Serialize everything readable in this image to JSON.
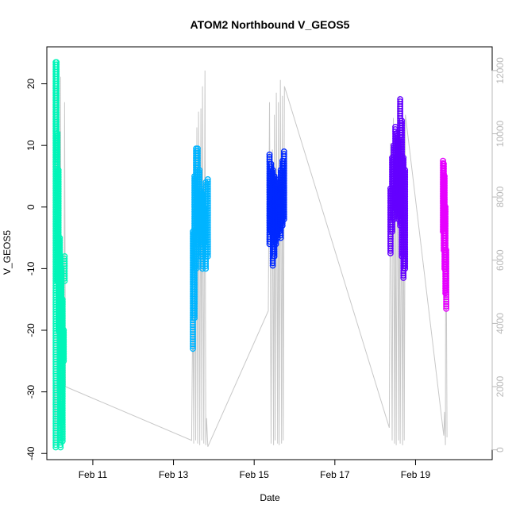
{
  "chart_data": {
    "type": "scatter",
    "title": "ATOM2 Northbound V_GEOS5",
    "xlabel": "Date",
    "ylabel": "V_GEOS5",
    "xlim": [
      9.86,
      20.9
    ],
    "ylim": [
      -41,
      26
    ],
    "y2lim": [
      -310,
      12750
    ],
    "x_ticks": [
      {
        "value": 11,
        "label": "Feb 11"
      },
      {
        "value": 13,
        "label": "Feb 13"
      },
      {
        "value": 15,
        "label": "Feb 15"
      },
      {
        "value": 17,
        "label": "Feb 17"
      },
      {
        "value": 19,
        "label": "Feb 19"
      }
    ],
    "y_ticks": [
      {
        "value": -40,
        "label": "-40"
      },
      {
        "value": -30,
        "label": "-30"
      },
      {
        "value": -20,
        "label": "-20"
      },
      {
        "value": -10,
        "label": "-10"
      },
      {
        "value": 0,
        "label": "0"
      },
      {
        "value": 10,
        "label": "10"
      },
      {
        "value": 20,
        "label": "20"
      }
    ],
    "y2_ticks": [
      {
        "value": 0,
        "label": "0"
      },
      {
        "value": 2000,
        "label": "2000"
      },
      {
        "value": 4000,
        "label": "4000"
      },
      {
        "value": 6000,
        "label": "6000"
      },
      {
        "value": 8000,
        "label": "8000"
      },
      {
        "value": 10000,
        "label": "10000"
      },
      {
        "value": 12000,
        "label": "12000"
      }
    ],
    "series": [
      {
        "color": "#00f5b8",
        "x": [
          10.08,
          10.1,
          10.12,
          10.15,
          10.18,
          10.2,
          10.22,
          10.25,
          10.28,
          10.3
        ],
        "min": [
          -39,
          8,
          -12,
          -20,
          -30,
          -39,
          -35,
          -38,
          -25,
          -12
        ],
        "max": [
          23.5,
          23.5,
          12,
          6,
          -5,
          -8,
          -10,
          -15,
          -20,
          -8
        ]
      },
      {
        "color": "#00b4ff",
        "x": [
          13.48,
          13.52,
          13.56,
          13.6,
          13.64,
          13.68,
          13.72,
          13.76,
          13.8,
          13.85
        ],
        "min": [
          -23,
          -18,
          -10,
          -6,
          -4,
          -8,
          -10,
          -6,
          -10,
          -8
        ],
        "max": [
          -4,
          5,
          9.5,
          9.5,
          6,
          3,
          2,
          0,
          4,
          4.5
        ]
      },
      {
        "color": "#0028ff",
        "x": [
          15.38,
          15.42,
          15.46,
          15.5,
          15.54,
          15.58,
          15.62,
          15.66,
          15.7,
          15.74
        ],
        "min": [
          -6,
          -4,
          -9.5,
          -8,
          -6,
          -5,
          -4,
          -5,
          -3,
          -2
        ],
        "max": [
          8.5,
          7,
          6,
          5,
          4.5,
          4,
          3,
          6,
          7.5,
          9
        ]
      },
      {
        "color": "#6400ff",
        "x": [
          18.38,
          18.42,
          18.46,
          18.5,
          18.54,
          18.58,
          18.62,
          18.66,
          18.7,
          18.74
        ],
        "min": [
          -7.5,
          -4,
          -2,
          0,
          -1,
          -2,
          -3,
          -8,
          -11.5,
          -10
        ],
        "max": [
          3,
          8,
          10,
          13,
          12,
          11,
          17.5,
          14,
          8,
          6
        ]
      },
      {
        "color": "#e600ff",
        "x": [
          19.68,
          19.7,
          19.72,
          19.74,
          19.76
        ],
        "min": [
          -4,
          -7,
          -10,
          -14,
          -16.5
        ],
        "max": [
          7.5,
          7,
          5,
          0,
          -7
        ]
      }
    ],
    "altitude_path": {
      "color": "#c8c8c8",
      "x": [
        10.05,
        10.08,
        10.1,
        10.12,
        10.15,
        10.18,
        10.2,
        10.22,
        10.25,
        10.28,
        10.3,
        10.32,
        13.45,
        13.48,
        13.5,
        13.52,
        13.55,
        13.58,
        13.6,
        13.62,
        13.65,
        13.68,
        13.7,
        13.72,
        13.75,
        13.78,
        13.8,
        13.82,
        13.85,
        15.35,
        15.38,
        15.42,
        15.45,
        15.48,
        15.5,
        15.52,
        15.55,
        15.58,
        15.6,
        15.62,
        15.65,
        15.68,
        15.7,
        15.72,
        15.75,
        18.35,
        18.38,
        18.42,
        18.45,
        18.48,
        18.5,
        18.52,
        18.55,
        18.58,
        18.6,
        18.62,
        18.65,
        18.68,
        18.7,
        18.72,
        18.75,
        19.7,
        19.72,
        19.74,
        19.75,
        19.78
      ],
      "y": [
        2150,
        150,
        11500,
        300,
        9000,
        150,
        11800,
        200,
        6000,
        300,
        11000,
        2000,
        300,
        5000,
        200,
        9000,
        300,
        10200,
        200,
        10700,
        150,
        10800,
        300,
        11500,
        200,
        12000,
        150,
        1000,
        100,
        4400,
        11000,
        200,
        9500,
        150,
        10600,
        300,
        11300,
        200,
        11000,
        150,
        11700,
        200,
        11200,
        300,
        11500,
        700,
        9700,
        300,
        10500,
        200,
        9000,
        150,
        10900,
        300,
        11200,
        200,
        8000,
        150,
        9800,
        300,
        10600,
        450,
        1200,
        150,
        9200,
        400
      ]
    }
  }
}
